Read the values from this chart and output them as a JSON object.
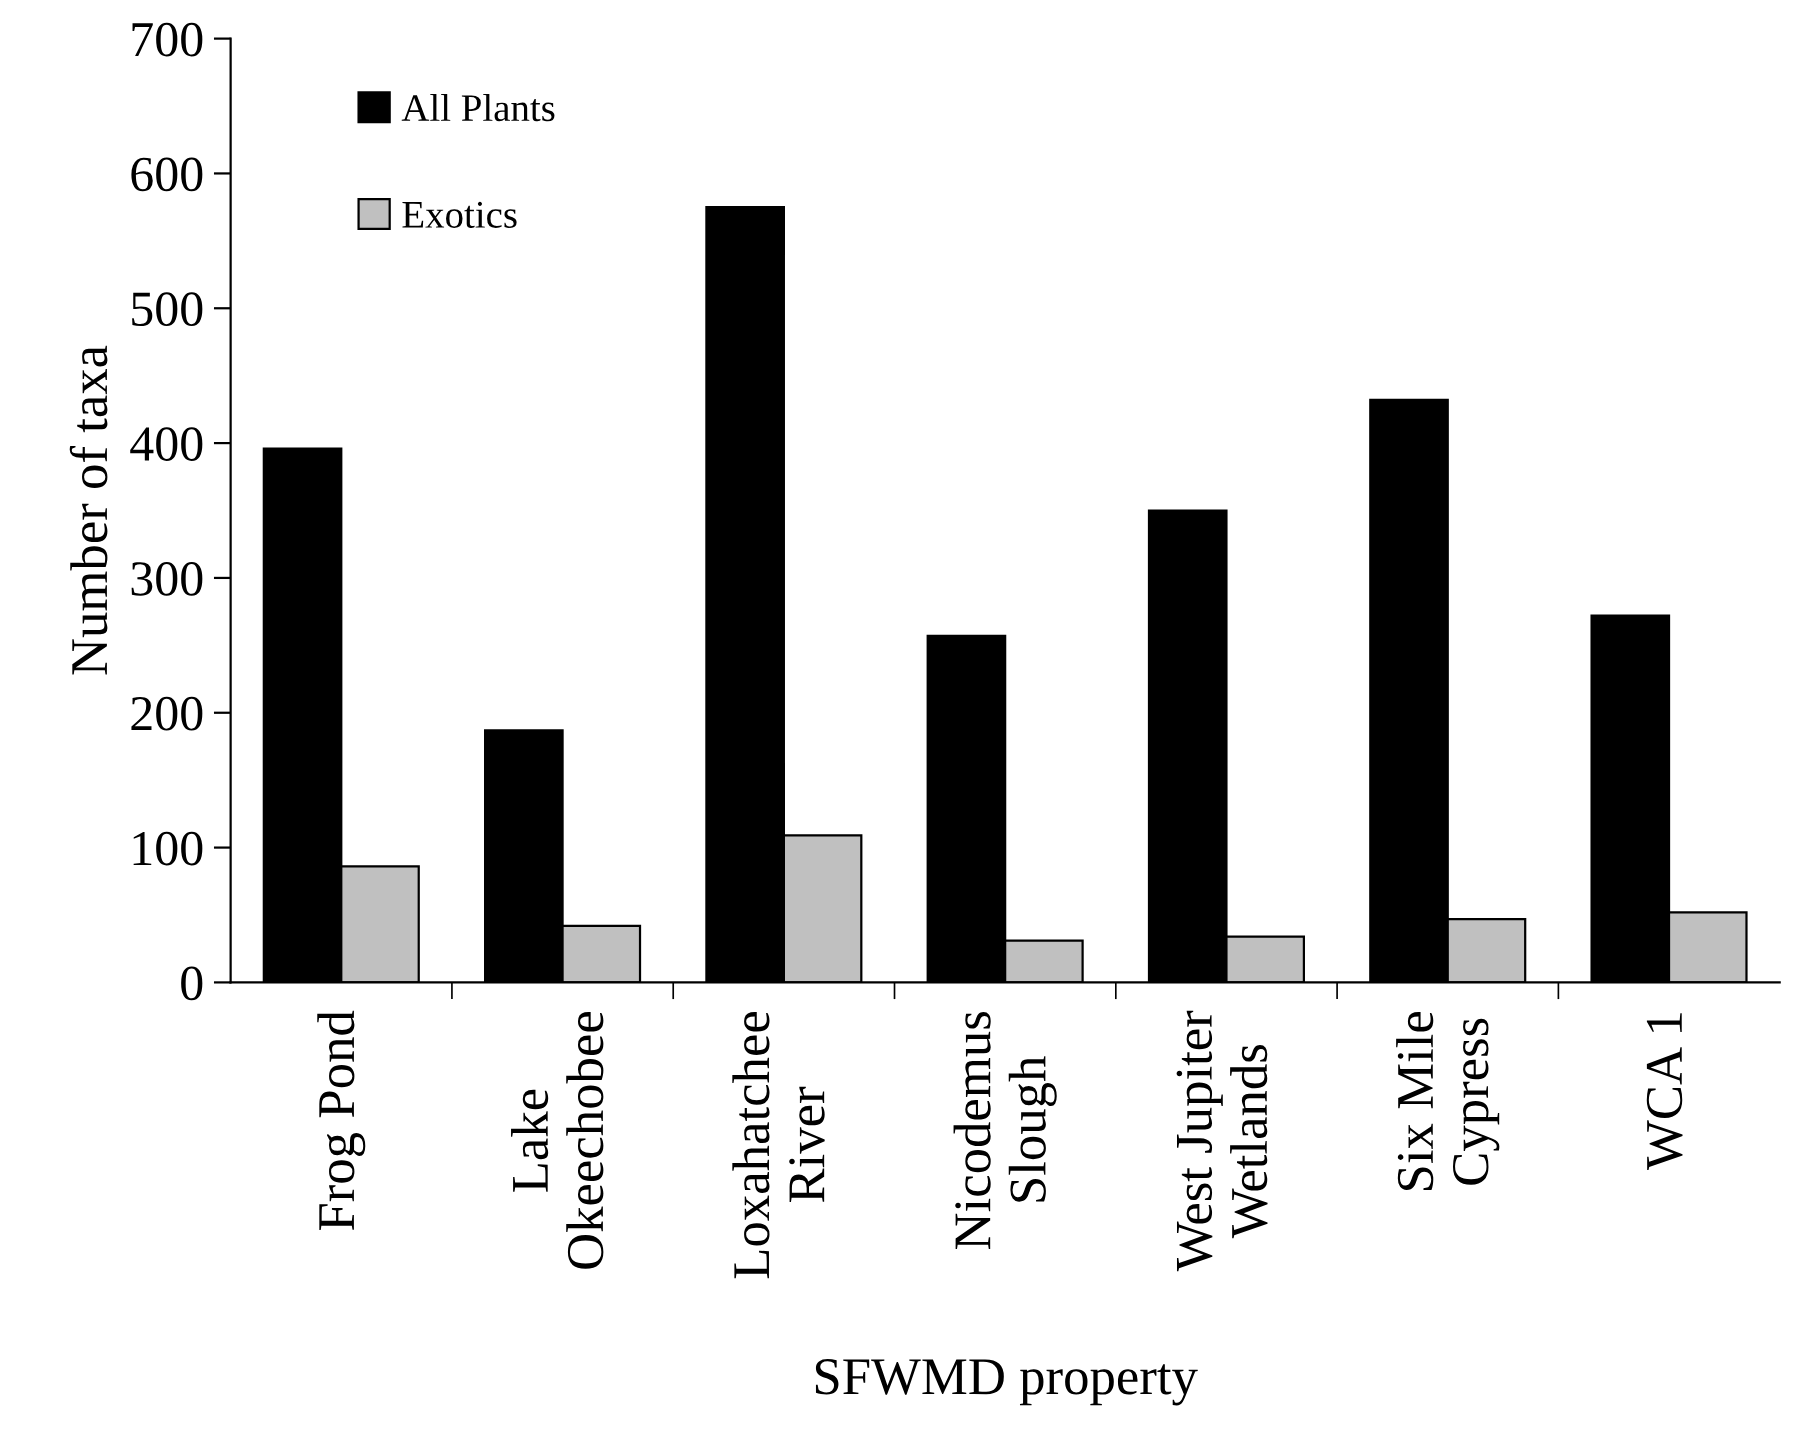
{
  "chart_data": {
    "type": "bar",
    "xlabel": "SFWMD property",
    "ylabel": "Number of taxa",
    "categories": [
      "Frog Pond",
      "Lake\nOkeechobee",
      "Loxahatchee\nRiver",
      "Nicodemus\nSlough",
      "West Jupiter\nWetlands",
      "Six Mile\nCypress",
      "WCA 1"
    ],
    "series": [
      {
        "name": "All Plants",
        "color": "#000000",
        "values": [
          396,
          187,
          575,
          257,
          350,
          432,
          272
        ]
      },
      {
        "name": "Exotics",
        "color": "#c0c0c0",
        "values": [
          86,
          42,
          109,
          31,
          34,
          47,
          52
        ]
      }
    ],
    "ylim": [
      0,
      700
    ],
    "yticks": [
      0,
      100,
      200,
      300,
      400,
      500,
      600,
      700
    ],
    "grid": false,
    "legend": "top left"
  }
}
